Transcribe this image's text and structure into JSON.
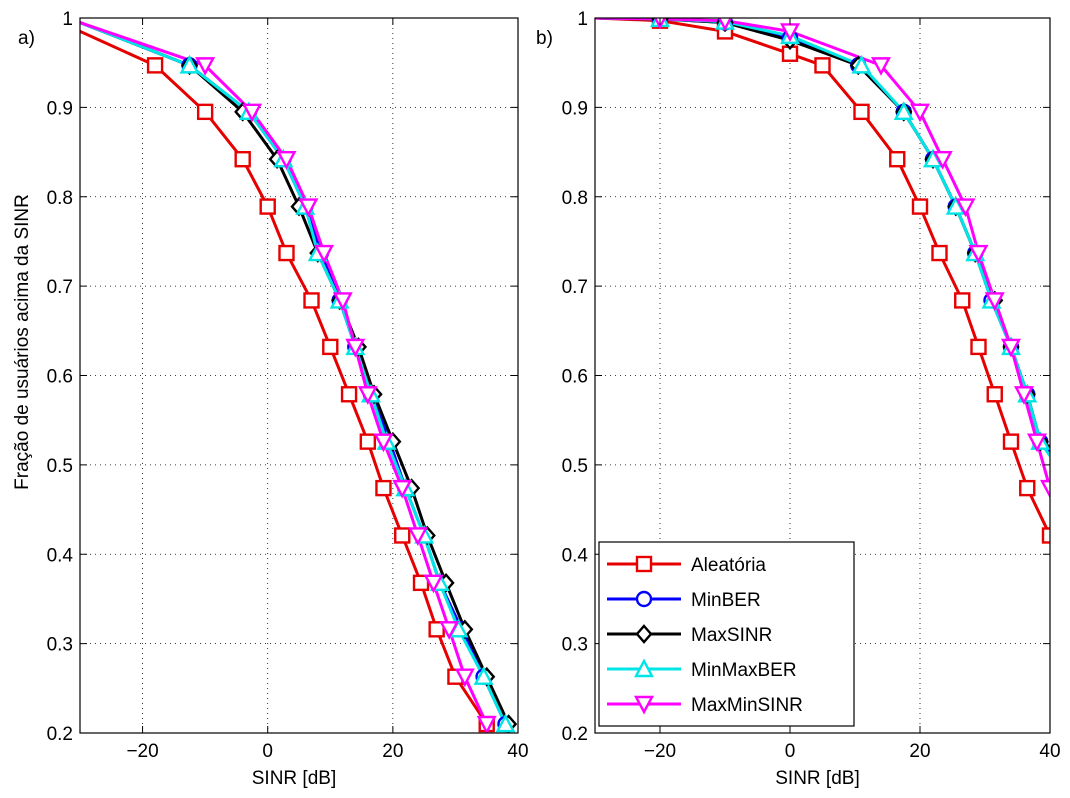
{
  "y_axis_label": "Fração de usuários acima da SINR",
  "colors": {
    "Aleatória": "#e60000",
    "MinBER": "#0000ff",
    "MaxSINR": "#000000",
    "MinMaxBER": "#00e5e5",
    "MaxMinSINR": "#ff00ff"
  },
  "legend": {
    "placement": "bottom-left of panel b",
    "entries": [
      {
        "label": "Aleatória",
        "marker": "square"
      },
      {
        "label": "MinBER",
        "marker": "circle"
      },
      {
        "label": "MaxSINR",
        "marker": "diamond"
      },
      {
        "label": "MinMaxBER",
        "marker": "triangle-up"
      },
      {
        "label": "MaxMinSINR",
        "marker": "triangle-down"
      }
    ]
  },
  "chart_data": [
    {
      "type": "line",
      "panel_label": "a)",
      "xlabel": "SINR [dB]",
      "ylabel": "Fração de usuários acima da SINR",
      "xlim": [
        -30,
        40
      ],
      "ylim": [
        0.2,
        1
      ],
      "xticks": [
        -20,
        0,
        20,
        40
      ],
      "xtick_labels": [
        "−20",
        "0",
        "20",
        "40"
      ],
      "yticks": [
        0.2,
        0.3,
        0.4,
        0.5,
        0.6,
        0.7,
        0.8,
        0.9,
        1
      ],
      "ytick_labels": [
        "0.2",
        "0.3",
        "0.4",
        "0.5",
        "0.6",
        "0.7",
        "0.8",
        "0.9",
        "1"
      ],
      "grid": true,
      "series": [
        {
          "name": "Aleatória",
          "marker": "square",
          "x": [
            -30,
            -18,
            -10,
            -4,
            0,
            3,
            7,
            10,
            13,
            16,
            18.5,
            21.5,
            24.5,
            27,
            30,
            35
          ],
          "y": [
            0.985,
            0.947,
            0.895,
            0.842,
            0.789,
            0.737,
            0.684,
            0.632,
            0.579,
            0.526,
            0.474,
            0.421,
            0.368,
            0.316,
            0.263,
            0.21
          ]
        },
        {
          "name": "MinBER",
          "marker": "circle",
          "x": [
            -30,
            -12.5,
            -3,
            2.5,
            6,
            8.5,
            11.5,
            14,
            16.5,
            19.5,
            22,
            25,
            27.5,
            31,
            34.5,
            38
          ],
          "y": [
            0.995,
            0.947,
            0.895,
            0.842,
            0.789,
            0.737,
            0.684,
            0.632,
            0.579,
            0.526,
            0.474,
            0.421,
            0.368,
            0.316,
            0.263,
            0.21
          ]
        },
        {
          "name": "MaxSINR",
          "marker": "diamond",
          "x": [
            -30,
            -12.5,
            -4,
            1.5,
            5,
            8,
            11.5,
            14.5,
            17,
            20,
            23,
            25.5,
            28.5,
            31.5,
            35,
            38.5
          ],
          "y": [
            0.995,
            0.947,
            0.895,
            0.842,
            0.789,
            0.737,
            0.684,
            0.632,
            0.579,
            0.526,
            0.474,
            0.421,
            0.368,
            0.316,
            0.263,
            0.21
          ]
        },
        {
          "name": "MinMaxBER",
          "marker": "triangle-up",
          "x": [
            -30,
            -12.5,
            -3,
            2.5,
            6,
            8,
            11.5,
            14,
            16.5,
            19,
            22,
            25,
            27.5,
            30.5,
            34.5,
            38
          ],
          "y": [
            0.995,
            0.947,
            0.895,
            0.842,
            0.789,
            0.737,
            0.684,
            0.632,
            0.579,
            0.526,
            0.474,
            0.421,
            0.368,
            0.316,
            0.263,
            0.21
          ]
        },
        {
          "name": "MaxMinSINR",
          "marker": "triangle-down",
          "x": [
            -30,
            -10,
            -2.5,
            3,
            6.5,
            9,
            12,
            14,
            16,
            18.5,
            21.5,
            24,
            26.5,
            29,
            31.5,
            35
          ],
          "y": [
            0.995,
            0.947,
            0.895,
            0.842,
            0.789,
            0.737,
            0.684,
            0.632,
            0.579,
            0.526,
            0.474,
            0.421,
            0.368,
            0.316,
            0.263,
            0.21
          ]
        }
      ]
    },
    {
      "type": "line",
      "panel_label": "b)",
      "xlabel": "SINR [dB]",
      "ylabel": "",
      "xlim": [
        -30,
        40
      ],
      "ylim": [
        0.2,
        1
      ],
      "xticks": [
        -20,
        0,
        20,
        40
      ],
      "xtick_labels": [
        "−20",
        "0",
        "20",
        "40"
      ],
      "yticks": [
        0.2,
        0.3,
        0.4,
        0.5,
        0.6,
        0.7,
        0.8,
        0.9,
        1
      ],
      "ytick_labels": [
        "0.2",
        "0.3",
        "0.4",
        "0.5",
        "0.6",
        "0.7",
        "0.8",
        "0.9",
        "1"
      ],
      "grid": true,
      "series": [
        {
          "name": "Aleatória",
          "marker": "square",
          "x": [
            -30,
            -20,
            -10,
            0,
            5,
            11,
            16.5,
            20,
            23,
            26.5,
            29,
            31.5,
            34,
            36.5,
            40
          ],
          "y": [
            1.0,
            0.997,
            0.985,
            0.96,
            0.947,
            0.895,
            0.842,
            0.789,
            0.737,
            0.684,
            0.632,
            0.579,
            0.526,
            0.474,
            0.421
          ]
        },
        {
          "name": "MinBER",
          "marker": "circle",
          "x": [
            -30,
            -20,
            -10,
            0,
            10.5,
            17.5,
            22,
            25.5,
            28.5,
            31,
            34,
            36.5,
            38.5,
            40
          ],
          "y": [
            1.0,
            0.999,
            0.995,
            0.978,
            0.947,
            0.895,
            0.842,
            0.789,
            0.737,
            0.684,
            0.632,
            0.579,
            0.526,
            0.515
          ]
        },
        {
          "name": "MaxSINR",
          "marker": "diamond",
          "x": [
            -30,
            -20,
            -10,
            0,
            10.5,
            17.5,
            22,
            25.5,
            28.5,
            31.5,
            34,
            36.5,
            38.5,
            40
          ],
          "y": [
            1.0,
            0.999,
            0.995,
            0.975,
            0.947,
            0.895,
            0.842,
            0.789,
            0.737,
            0.684,
            0.632,
            0.579,
            0.526,
            0.52
          ]
        },
        {
          "name": "MinMaxBER",
          "marker": "triangle-up",
          "x": [
            -30,
            -20,
            -10,
            0,
            11,
            17.5,
            22,
            25.5,
            28.5,
            31,
            34,
            36.5,
            38.5,
            40
          ],
          "y": [
            1.0,
            0.999,
            0.996,
            0.98,
            0.947,
            0.895,
            0.842,
            0.789,
            0.737,
            0.684,
            0.632,
            0.579,
            0.526,
            0.51
          ]
        },
        {
          "name": "MaxMinSINR",
          "marker": "triangle-down",
          "x": [
            -30,
            -20,
            -10,
            0,
            14,
            20,
            23.5,
            27,
            29,
            31.5,
            34,
            36,
            38,
            40
          ],
          "y": [
            1.0,
            0.999,
            0.997,
            0.985,
            0.947,
            0.895,
            0.842,
            0.789,
            0.737,
            0.684,
            0.632,
            0.579,
            0.526,
            0.474
          ]
        }
      ]
    }
  ]
}
